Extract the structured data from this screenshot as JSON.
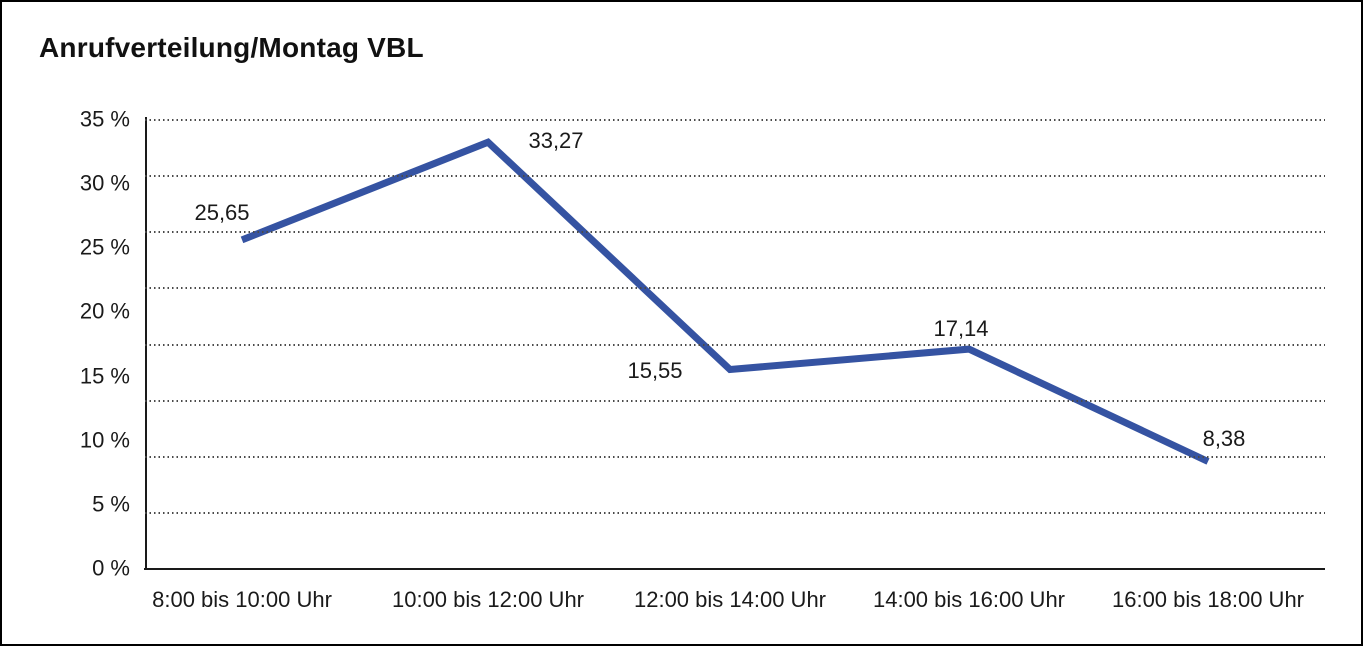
{
  "chart_data": {
    "type": "line",
    "title": "Anrufverteilung/Montag VBL",
    "categories": [
      "8:00 bis 10:00 Uhr",
      "10:00 bis 12:00 Uhr",
      "12:00 bis 14:00 Uhr",
      "14:00 bis 16:00 Uhr",
      "16:00 bis 18:00 Uhr"
    ],
    "values": [
      25.65,
      33.27,
      15.55,
      17.14,
      8.38
    ],
    "value_labels": [
      "25,65",
      "33,27",
      "15,55",
      "17,14",
      "8,38"
    ],
    "unit": "%",
    "xlabel": "",
    "ylabel": "",
    "ylim": [
      0,
      35
    ],
    "ytick_values": [
      35,
      30,
      25,
      20,
      15,
      10,
      5,
      0
    ],
    "ytick_labels": [
      "35 %",
      "30 %",
      "25 %",
      "20 %",
      "15 %",
      "10 %",
      "5 %",
      "0 %"
    ],
    "grid": "horizontal-dotted",
    "grid_divisions": 8,
    "legend_position": "none",
    "line_color": "#3553a2",
    "text_color": "#1a1a1a"
  }
}
